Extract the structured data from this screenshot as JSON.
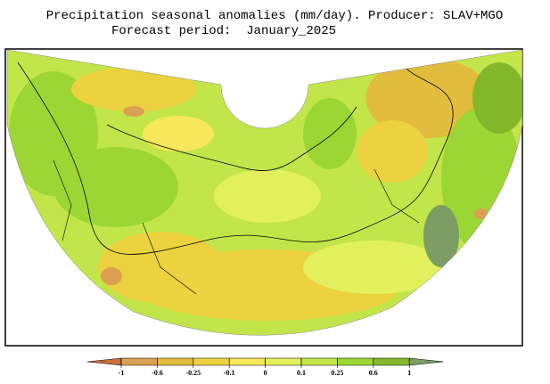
{
  "header": {
    "title": "Precipitation seasonal anomalies (mm/day). Producer: SLAV+MGO",
    "subtitle": "Forecast period:  January_2025"
  },
  "colorbar": {
    "ticks": [
      -1,
      -0.6,
      -0.25,
      -0.1,
      0,
      0.1,
      0.25,
      0.6,
      1
    ],
    "colors": [
      "#c8703c",
      "#dca052",
      "#e2bc3c",
      "#ecd23e",
      "#f6e85a",
      "#e2f05e",
      "#c2e64a",
      "#9cd634",
      "#84b82c",
      "#7c9e64"
    ]
  }
}
